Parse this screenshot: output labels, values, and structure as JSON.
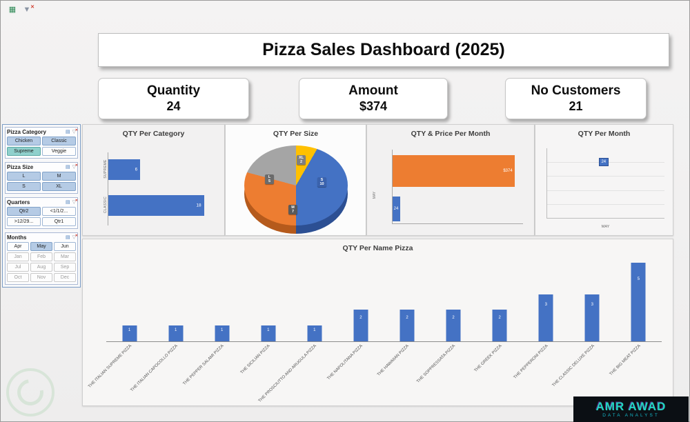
{
  "header": {
    "title": "Pizza Sales Dashboard (2025)"
  },
  "kpis": [
    {
      "label": "Quantity",
      "value": "24"
    },
    {
      "label": "Amount",
      "value": "$374"
    },
    {
      "label": "No Customers",
      "value": "21"
    }
  ],
  "slicers": [
    {
      "title": "Pizza Category",
      "columns": 2,
      "items": [
        {
          "label": "Chicken",
          "state": "on"
        },
        {
          "label": "Classic",
          "state": "on"
        },
        {
          "label": "Supreme",
          "state": "sel"
        },
        {
          "label": "Veggie",
          "state": "off"
        }
      ]
    },
    {
      "title": "Pizza Size",
      "columns": 2,
      "items": [
        {
          "label": "L",
          "state": "on"
        },
        {
          "label": "M",
          "state": "on"
        },
        {
          "label": "S",
          "state": "on"
        },
        {
          "label": "XL",
          "state": "on"
        }
      ]
    },
    {
      "title": "Quarters",
      "columns": 2,
      "items": [
        {
          "label": "Qtr2",
          "state": "on"
        },
        {
          "label": "<1/1/2...",
          "state": "off"
        },
        {
          "label": ">12/29...",
          "state": "off"
        },
        {
          "label": "Qtr1",
          "state": "off"
        }
      ]
    },
    {
      "title": "Months",
      "columns": 3,
      "items": [
        {
          "label": "Apr",
          "state": "off"
        },
        {
          "label": "May",
          "state": "on"
        },
        {
          "label": "Jun",
          "state": "off"
        },
        {
          "label": "Jan",
          "state": "dim"
        },
        {
          "label": "Feb",
          "state": "dim"
        },
        {
          "label": "Mar",
          "state": "dim"
        },
        {
          "label": "Jul",
          "state": "dim"
        },
        {
          "label": "Aug",
          "state": "dim"
        },
        {
          "label": "Sep",
          "state": "dim"
        },
        {
          "label": "Oct",
          "state": "dim"
        },
        {
          "label": "Nov",
          "state": "dim"
        },
        {
          "label": "Dec",
          "state": "dim"
        }
      ]
    }
  ],
  "chart_data": [
    {
      "type": "bar",
      "orientation": "horizontal",
      "title": "QTY Per Category",
      "categories": [
        "SUPREME",
        "CLASSIC"
      ],
      "values": [
        6,
        18
      ],
      "xlim": [
        0,
        20
      ],
      "color": "#4472c4"
    },
    {
      "type": "pie",
      "title": "QTY Per Size",
      "labels": [
        "XL",
        "S",
        "M",
        "L"
      ],
      "values": [
        2,
        10,
        7,
        5
      ],
      "colors": [
        "#ffc000",
        "#4472c4",
        "#ed7d31",
        "#a5a5a5"
      ],
      "side_colors": [
        "#b38600",
        "#2c4f93",
        "#b55a1c",
        "#767676"
      ],
      "label_colors": [
        "#7f7f7f",
        "#3a62ad",
        "#5a5a5a",
        "#6b6b6b"
      ]
    },
    {
      "type": "bar",
      "orientation": "horizontal",
      "title": "QTY & Price Per Month",
      "categories": [
        "MAY"
      ],
      "xmax": 400,
      "series": [
        {
          "name": "Price",
          "values": [
            374
          ],
          "label": "$374",
          "color": "#ed7d31"
        },
        {
          "name": "QTY",
          "values": [
            24
          ],
          "label": "24",
          "color": "#4472c4"
        }
      ]
    },
    {
      "type": "scatter",
      "title": "QTY Per Month",
      "categories": [
        "MAY"
      ],
      "values": [
        24
      ],
      "point_label": "24"
    },
    {
      "type": "bar",
      "title": "QTY Per Name Pizza",
      "categories": [
        "THE ITALIAN SUPREME PIZZA",
        "THE ITALIAN CAPOCOLLO PIZZA",
        "THE PEPPER SALAMI PIZZA",
        "THE SICILIAN PIZZA",
        "THE PROSCIUTTO AND ARUGULA PIZZA",
        "THE NAPOLITANA PIZZA",
        "THE HAWAIIAN PIZZA",
        "THE SOPPRESSATA PIZZA",
        "THE GREEK PIZZA",
        "THE PEPPERONI PIZZA",
        "THE CLASSIC DELUXE PIZZA",
        "THE BIG MEAT PIZZA"
      ],
      "values": [
        1,
        1,
        1,
        1,
        1,
        2,
        2,
        2,
        2,
        3,
        3,
        5
      ],
      "ylim": [
        0,
        5
      ],
      "color": "#4472c4"
    }
  ],
  "branding": {
    "name": "AMR AWAD",
    "subtitle": "DATA ANALYST"
  }
}
